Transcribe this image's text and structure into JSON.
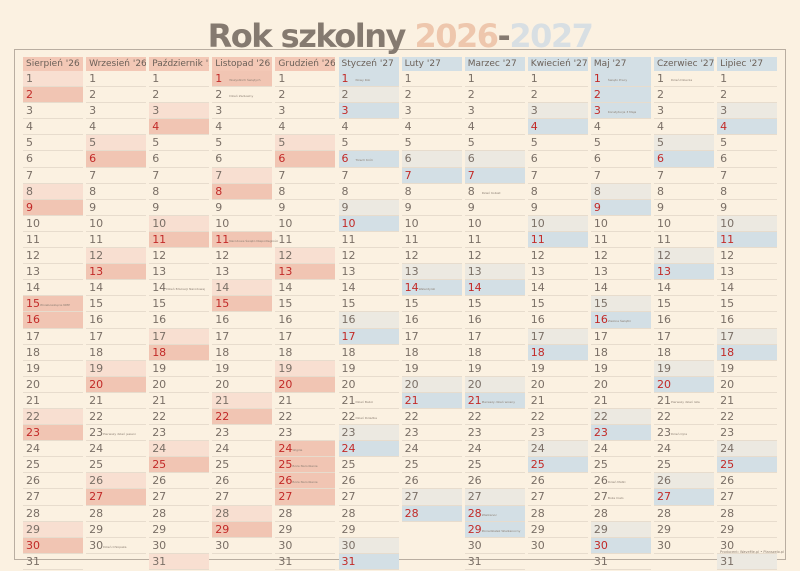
{
  "title": {
    "text": "Rok szkolny",
    "year1": "2026",
    "dash": "-",
    "year2": "2027"
  },
  "colors": {
    "red_text": "#c22a28",
    "normal_text": "#7a6f66",
    "pink_header": "#f3c8b6",
    "blue_header": "#d3dfe5",
    "pink_strong": "#f1c5b3",
    "pink_light": "#f8dfd1",
    "blue_strong": "#d3dfe5",
    "blue_light": "#ece9e1"
  },
  "months": [
    {
      "name": "Sierpień '26",
      "days": 31,
      "offset": 5,
      "theme": "pink",
      "red": [
        2,
        9,
        15,
        16,
        23,
        30
      ],
      "notes": {
        "15": "Wniebowzięcie NMP"
      }
    },
    {
      "name": "Wrzesień '26",
      "days": 30,
      "offset": 1,
      "theme": "pink",
      "red": [
        6,
        13,
        20,
        27
      ],
      "notes": {
        "23": "Pierwszy dzień jesieni",
        "30": "Dzień Chłopaka"
      }
    },
    {
      "name": "Październik '26",
      "days": 31,
      "offset": 3,
      "theme": "pink",
      "red": [
        4,
        11,
        18,
        25
      ],
      "notes": {
        "14": "Dzień Edukacji Narodowej"
      }
    },
    {
      "name": "Listopad '26",
      "days": 30,
      "offset": 6,
      "theme": "pink",
      "red": [
        1,
        8,
        11,
        15,
        22,
        29
      ],
      "notes": {
        "1": "Wszystkich Świętych",
        "2": "Dzień Zaduszny",
        "11": "Narodowe Święto Niepodległości"
      }
    },
    {
      "name": "Grudzień '26",
      "days": 31,
      "offset": 1,
      "theme": "pink",
      "red": [
        6,
        13,
        20,
        24,
        25,
        26,
        27
      ],
      "notes": {
        "24": "Wigilia",
        "25": "Boże Narodzenie",
        "26": "Boże Narodzenie"
      }
    },
    {
      "name": "Styczeń '27",
      "days": 31,
      "offset": 4,
      "theme": "blue",
      "red": [
        1,
        3,
        6,
        10,
        17,
        24,
        31
      ],
      "notes": {
        "1": "Nowy Rok",
        "6": "Trzech Króli",
        "21": "Dzień Babci",
        "22": "Dzień Dziadka"
      }
    },
    {
      "name": "Luty '27",
      "days": 28,
      "offset": 0,
      "theme": "blue",
      "red": [
        7,
        14,
        21,
        28
      ],
      "notes": {
        "14": "Walentynki"
      }
    },
    {
      "name": "Marzec '27",
      "days": 31,
      "offset": 0,
      "theme": "blue",
      "red": [
        7,
        14,
        21,
        28,
        29
      ],
      "notes": {
        "8": "Dzień Kobiet",
        "21": "Pierwszy dzień wiosny",
        "28": "Wielkanoc",
        "29": "Poniedziałek Wielkanocny"
      }
    },
    {
      "name": "Kwiecień '27",
      "days": 30,
      "offset": 3,
      "theme": "blue",
      "red": [
        4,
        11,
        18,
        25
      ],
      "notes": {}
    },
    {
      "name": "Maj '27",
      "days": 31,
      "offset": 5,
      "theme": "blue",
      "red": [
        1,
        2,
        3,
        9,
        16,
        23,
        30
      ],
      "notes": {
        "1": "Święto Pracy",
        "3": "Konstytucja 3 Maja",
        "16": "Zielone Świątki",
        "26": "Dzień Matki",
        "27": "Boże Ciało"
      }
    },
    {
      "name": "Czerwiec '27",
      "days": 30,
      "offset": 1,
      "theme": "blue",
      "red": [
        6,
        13,
        20,
        27
      ],
      "notes": {
        "1": "Dzień Dziecka",
        "21": "Pierwszy dzień lata",
        "23": "Dzień Ojca"
      }
    },
    {
      "name": "Lipiec '27",
      "days": 31,
      "offset": 3,
      "theme": "blue",
      "red": [
        4,
        11,
        18,
        25
      ],
      "notes": {}
    }
  ],
  "footer": "Producent: WaveMe.pl • Planszelo.pl"
}
